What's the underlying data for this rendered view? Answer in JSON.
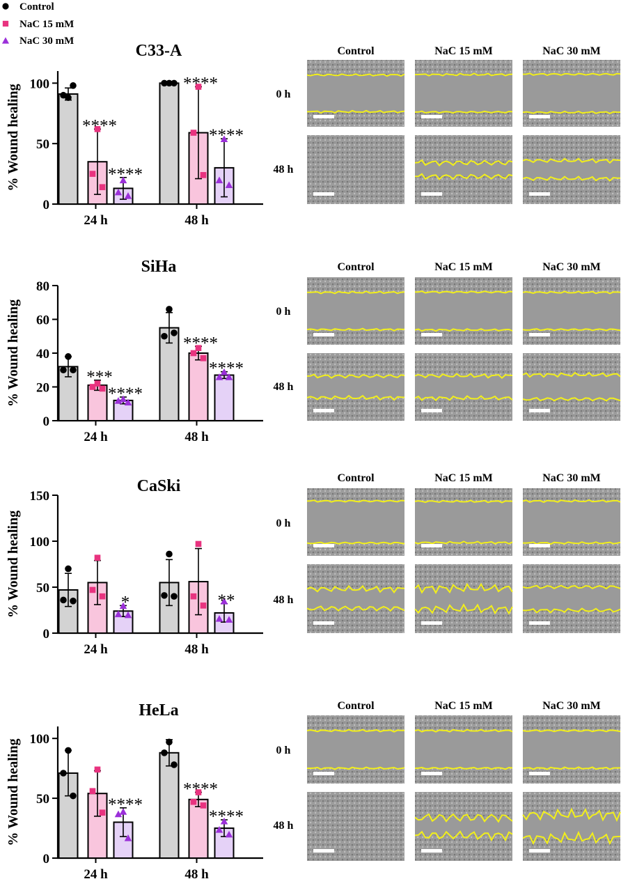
{
  "legend": [
    {
      "label": "Control",
      "marker": "circle",
      "color": "#000000",
      "fill": "#d3d3d3"
    },
    {
      "label": "NaC 15 mM",
      "marker": "square",
      "color": "#e8337f",
      "fill": "#f9c5dd"
    },
    {
      "label": "NaC 30 mM",
      "marker": "triangle",
      "color": "#9b30d9",
      "fill": "#e5d2f7"
    }
  ],
  "image_labels": {
    "columns": [
      "Control",
      "NaC 15 mM",
      "NaC 30 mM"
    ],
    "rows": [
      "0 h",
      "48 h"
    ]
  },
  "chart_data": [
    {
      "type": "bar",
      "title": "C33-A",
      "ylabel": "% Wound healing",
      "categories": [
        "24 h",
        "48 h"
      ],
      "ylim": [
        0,
        110
      ],
      "yticks": [
        0,
        50,
        100
      ],
      "series": [
        {
          "name": "Control",
          "values": [
            91,
            100
          ],
          "err": [
            5,
            0
          ],
          "points": [
            [
              88,
              90,
              98
            ],
            [
              100,
              100,
              100
            ]
          ],
          "sig": [
            "",
            ""
          ]
        },
        {
          "name": "NaC 15 mM",
          "values": [
            35,
            59
          ],
          "err": [
            27,
            38
          ],
          "points": [
            [
              62,
              25,
              14
            ],
            [
              97,
              59,
              24
            ]
          ],
          "sig": [
            "****",
            "****"
          ]
        },
        {
          "name": "NaC 30 mM",
          "values": [
            13,
            30
          ],
          "err": [
            9,
            24
          ],
          "points": [
            [
              20,
              10,
              7
            ],
            [
              54,
              20,
              16
            ]
          ],
          "sig": [
            "****",
            "****"
          ]
        }
      ]
    },
    {
      "type": "bar",
      "title": "SiHa",
      "ylabel": "% Wound healing",
      "categories": [
        "24 h",
        "48 h"
      ],
      "ylim": [
        0,
        80
      ],
      "yticks": [
        0,
        20,
        40,
        60,
        80
      ],
      "series": [
        {
          "name": "Control",
          "values": [
            32,
            55
          ],
          "err": [
            6,
            9
          ],
          "points": [
            [
              38,
              30,
              30
            ],
            [
              66,
              50,
              52
            ]
          ],
          "sig": [
            "",
            ""
          ]
        },
        {
          "name": "NaC 15 mM",
          "values": [
            21,
            40
          ],
          "err": [
            3,
            4
          ],
          "points": [
            [
              22,
              20,
              19
            ],
            [
              43,
              40,
              37
            ]
          ],
          "sig": [
            "***",
            "****"
          ]
        },
        {
          "name": "NaC 30 mM",
          "values": [
            12,
            27
          ],
          "err": [
            2,
            2
          ],
          "points": [
            [
              13,
              12,
              11
            ],
            [
              29,
              26,
              26
            ]
          ],
          "sig": [
            "****",
            "****"
          ]
        }
      ]
    },
    {
      "type": "bar",
      "title": "CaSki",
      "ylabel": "% Wound healing",
      "categories": [
        "24 h",
        "48 h"
      ],
      "ylim": [
        0,
        150
      ],
      "yticks": [
        0,
        50,
        100,
        150
      ],
      "series": [
        {
          "name": "Control",
          "values": [
            47,
            55
          ],
          "err": [
            18,
            25
          ],
          "points": [
            [
              70,
              36,
              35
            ],
            [
              86,
              41,
              40
            ]
          ],
          "sig": [
            "",
            ""
          ]
        },
        {
          "name": "NaC 15 mM",
          "values": [
            55,
            56
          ],
          "err": [
            24,
            36
          ],
          "points": [
            [
              82,
              47,
              40
            ],
            [
              97,
              40,
              30
            ]
          ],
          "sig": [
            "",
            ""
          ]
        },
        {
          "name": "NaC 30 mM",
          "values": [
            24,
            22
          ],
          "err": [
            6,
            10
          ],
          "points": [
            [
              30,
              21,
              20
            ],
            [
              35,
              16,
              15
            ]
          ],
          "sig": [
            "*",
            "**"
          ]
        }
      ]
    },
    {
      "type": "bar",
      "title": "HeLa",
      "ylabel": "% Wound healing",
      "categories": [
        "24 h",
        "48 h"
      ],
      "ylim": [
        0,
        110
      ],
      "yticks": [
        0,
        50,
        100
      ],
      "series": [
        {
          "name": "Control",
          "values": [
            71,
            88
          ],
          "err": [
            19,
            11
          ],
          "points": [
            [
              90,
              71,
              52
            ],
            [
              97,
              88,
              78
            ]
          ],
          "sig": [
            "",
            ""
          ]
        },
        {
          "name": "NaC 15 mM",
          "values": [
            54,
            49
          ],
          "err": [
            19,
            6
          ],
          "points": [
            [
              74,
              56,
              38
            ],
            [
              55,
              47,
              44
            ]
          ],
          "sig": [
            "",
            "****"
          ]
        },
        {
          "name": "NaC 30 mM",
          "values": [
            30,
            25
          ],
          "err": [
            12,
            7
          ],
          "points": [
            [
              39,
              37,
              17
            ],
            [
              31,
              24,
              20
            ]
          ],
          "sig": [
            "****",
            "****"
          ]
        }
      ]
    }
  ]
}
